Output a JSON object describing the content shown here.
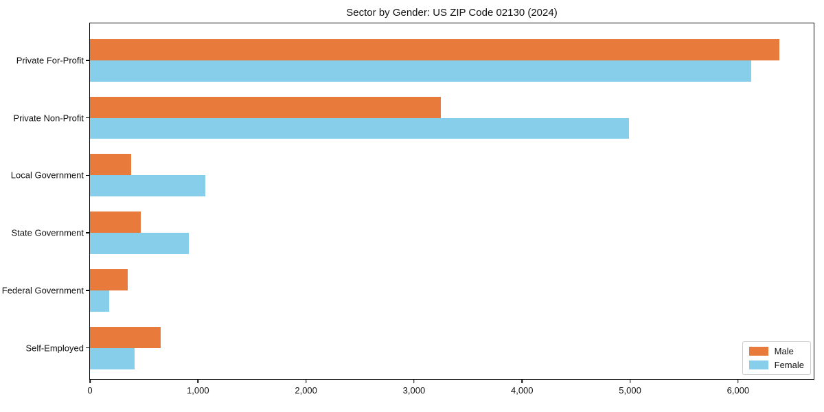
{
  "chart_data": {
    "type": "bar",
    "orientation": "horizontal",
    "title": "Sector by Gender: US ZIP Code 02130 (2024)",
    "categories": [
      "Private For-Profit",
      "Private Non-Profit",
      "Local Government",
      "State Government",
      "Federal Government",
      "Self-Employed"
    ],
    "series": [
      {
        "name": "Male",
        "color": "#e87a3c",
        "values": [
          6380,
          3250,
          380,
          470,
          350,
          655
        ]
      },
      {
        "name": "Female",
        "color": "#87ceeb",
        "values": [
          6120,
          4990,
          1070,
          915,
          180,
          415
        ]
      }
    ],
    "xlabel": "",
    "ylabel": "",
    "xlim": [
      0,
      6700
    ],
    "xticks": [
      0,
      1000,
      2000,
      3000,
      4000,
      5000,
      6000
    ],
    "xtick_labels": [
      "0",
      "1,000",
      "2,000",
      "3,000",
      "4,000",
      "5,000",
      "6,000"
    ],
    "grid": false,
    "legend": {
      "position": "lower right"
    }
  }
}
